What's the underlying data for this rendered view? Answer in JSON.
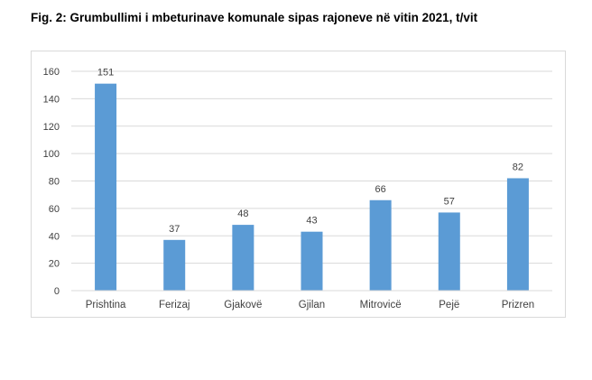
{
  "figure": {
    "title": "Fig. 2: Grumbullimi i mbeturinave komunale sipas rajoneve në vitin 2021, t/vit"
  },
  "chart_data": {
    "type": "bar",
    "title": "Fig. 2: Grumbullimi i mbeturinave komunale sipas rajoneve në vitin 2021, t/vit",
    "categories": [
      "Prishtina",
      "Ferizaj",
      "Gjakovë",
      "Gjilan",
      "Mitrovicë",
      "Pejë",
      "Prizren"
    ],
    "values": [
      151,
      37,
      48,
      43,
      66,
      57,
      82
    ],
    "ylim": [
      0,
      160
    ],
    "yticks": [
      0,
      20,
      40,
      60,
      80,
      100,
      120,
      140,
      160
    ],
    "xlabel": "",
    "ylabel": "",
    "grid": true,
    "legend": "none",
    "bar_color": "#5b9bd5",
    "grid_color": "#d9d9d9"
  }
}
